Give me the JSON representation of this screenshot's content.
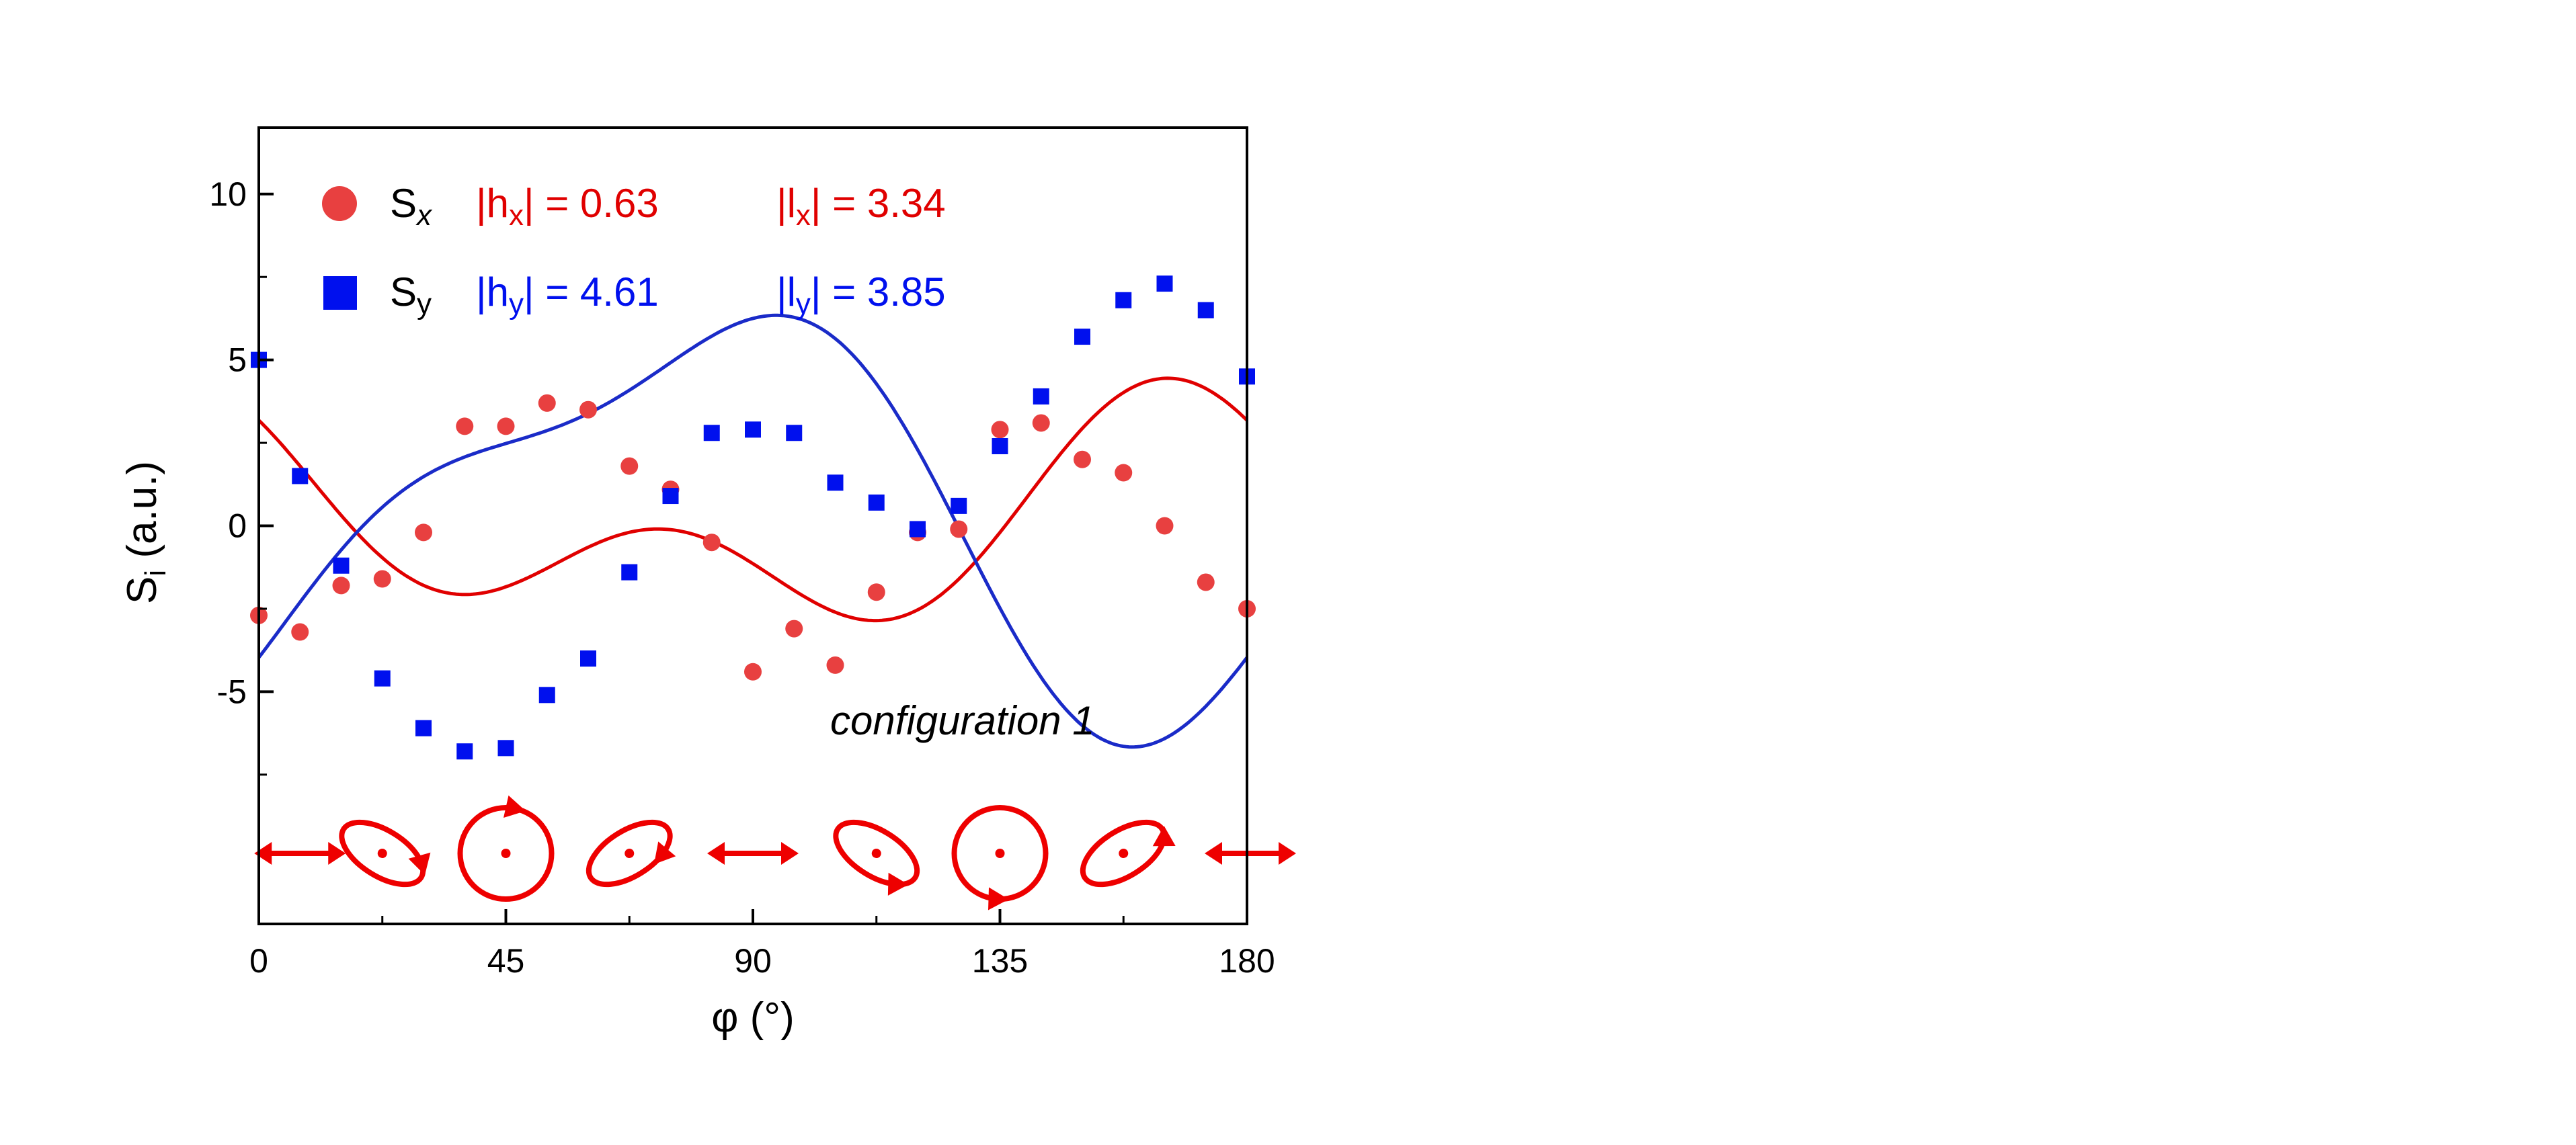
{
  "chart_data": {
    "type": "scatter",
    "xlabel": "φ (°)",
    "ylabel": "S",
    "ylabel_sub": "i",
    "ylabel_unit": " (a.u.)",
    "xlim": [
      0,
      180
    ],
    "ylim": [
      -12,
      12
    ],
    "xticks": [
      0,
      45,
      90,
      135,
      180
    ],
    "xtick_labels": [
      "0",
      "45",
      "90",
      "135",
      "180"
    ],
    "yticks": [
      -5,
      0,
      5,
      10
    ],
    "ytick_labels": [
      "-5",
      "0",
      "5",
      "10"
    ],
    "grid": false,
    "annotation": "configuration 1",
    "colors": {
      "sx": "#e84040",
      "sx_line": "#e00000",
      "sy": "#0010ee",
      "sy_line": "#1a2bc8",
      "ellipse": "#ee0000"
    },
    "legend": [
      {
        "symbol": "circle",
        "name": "S",
        "sub": "x",
        "h_label": "|h",
        "h_sub": "x",
        "h_value": "| = 0.63",
        "l_label": "|l",
        "l_sub": "x",
        "l_value": "| = 3.34"
      },
      {
        "symbol": "square",
        "name": "S",
        "sub": "y",
        "h_label": "|h",
        "h_sub": "y",
        "h_value": "| = 4.61",
        "l_label": "|l",
        "l_sub": "y",
        "l_value": "| = 3.85"
      }
    ],
    "series": [
      {
        "id": "sx",
        "x": [
          0,
          7.5,
          15,
          22.5,
          30,
          37.5,
          45,
          52.5,
          60,
          67.5,
          75,
          82.5,
          90,
          97.5,
          105,
          112.5,
          120,
          127.5,
          135,
          142.5,
          150,
          157.5,
          165,
          172.5,
          180
        ],
        "y": [
          -2.7,
          -3.2,
          -1.8,
          -1.6,
          -0.2,
          3.0,
          3.0,
          3.7,
          3.5,
          1.8,
          1.1,
          -0.5,
          -4.4,
          -3.1,
          -4.2,
          -2.0,
          -0.2,
          -0.1,
          2.9,
          3.1,
          2.0,
          1.6,
          0.0,
          -1.7,
          -2.5
        ],
        "fit": {
          "c": 0.0,
          "a2": -0.82,
          "b2": 2.16,
          "a4": -1.91,
          "b4": 1.02
        }
      },
      {
        "id": "sy",
        "x": [
          0,
          7.5,
          15,
          22.5,
          30,
          37.5,
          45,
          52.5,
          60,
          67.5,
          75,
          82.5,
          90,
          97.5,
          105,
          112.5,
          120,
          127.5,
          135,
          142.5,
          150,
          157.5,
          165,
          172.5,
          180
        ],
        "y": [
          5.0,
          1.5,
          -1.2,
          -4.6,
          -6.1,
          -6.8,
          -6.7,
          -5.1,
          -4.0,
          -1.4,
          0.9,
          2.8,
          2.9,
          2.8,
          1.3,
          0.7,
          -0.1,
          0.6,
          2.4,
          3.9,
          5.7,
          6.8,
          7.3,
          6.5,
          4.5
        ],
        "fit": {
          "c": 0.57,
          "a2": 2.48,
          "b2": -5.11,
          "a4": 1.85,
          "b4": 0.57
        }
      }
    ],
    "polarization_states": [
      {
        "phi": 7.5,
        "type": "linear"
      },
      {
        "phi": 22.5,
        "type": "ellipse",
        "tilt": 32,
        "rx": 1.0,
        "ry": 0.5,
        "arrow_t": -0.5,
        "dir": 1
      },
      {
        "phi": 45,
        "type": "circle",
        "arrow_t": -1.35,
        "dir": 1
      },
      {
        "phi": 67.5,
        "type": "ellipse",
        "tilt": -32,
        "rx": 1.0,
        "ry": 0.5,
        "arrow_t": 1.0,
        "dir": 1
      },
      {
        "phi": 90,
        "type": "linear"
      },
      {
        "phi": 112.5,
        "type": "ellipse",
        "tilt": 32,
        "rx": 1.0,
        "ry": 0.5,
        "arrow_t": 0.7,
        "dir": -1
      },
      {
        "phi": 135,
        "type": "circle",
        "arrow_t": 1.6,
        "dir": -1
      },
      {
        "phi": 157.5,
        "type": "ellipse",
        "tilt": -32,
        "rx": 1.0,
        "ry": 0.5,
        "arrow_t": 0.3,
        "dir": -1
      },
      {
        "phi": 180,
        "type": "linear"
      }
    ]
  }
}
